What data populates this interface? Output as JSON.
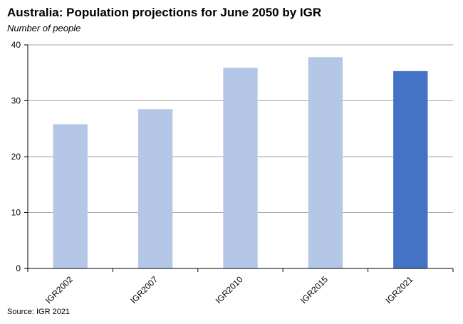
{
  "chart_data": {
    "type": "bar",
    "title": "Australia: Population projections for June 2050 by IGR",
    "subtitle": "Number of people",
    "source": "Source: IGR 2021",
    "categories": [
      "IGR2002",
      "IGR2007",
      "IGR2010",
      "IGR2015",
      "IGR2021"
    ],
    "values": [
      25.8,
      28.5,
      35.9,
      37.8,
      35.3
    ],
    "ylim": [
      0,
      40
    ],
    "yticks": [
      0,
      10,
      20,
      30,
      40
    ],
    "grid": true,
    "legend": "none",
    "colors": {
      "default": "#b4c7e7",
      "highlight": "#4472c4",
      "grid": "#a6a6a6",
      "axis": "#000000"
    },
    "highlight_index": 4
  }
}
